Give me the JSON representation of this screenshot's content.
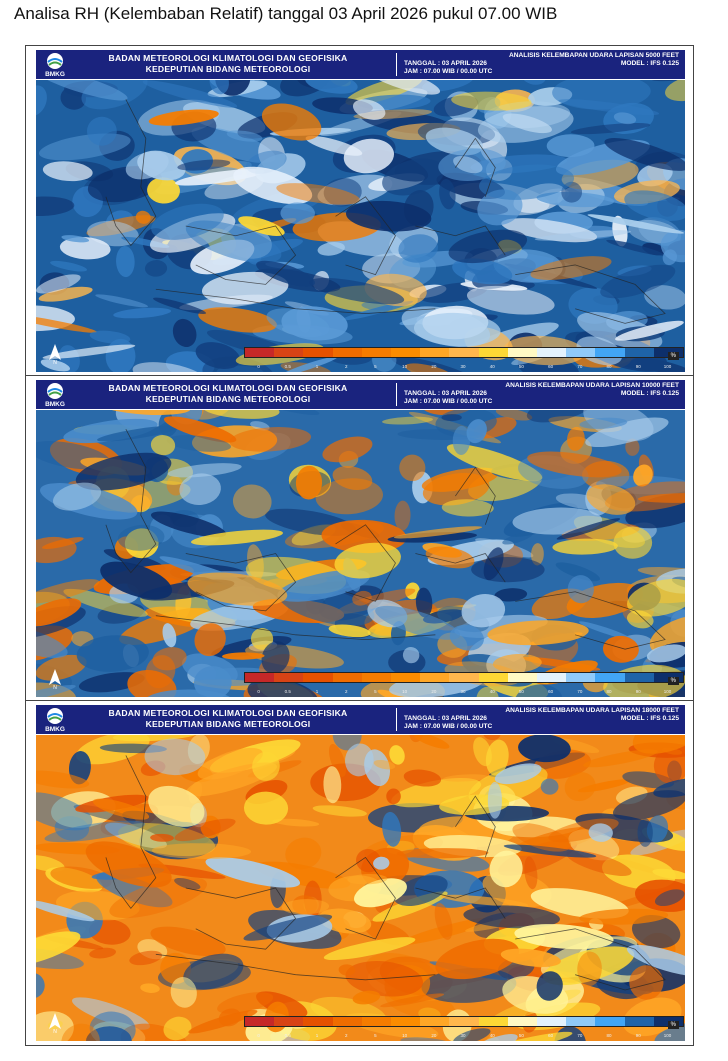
{
  "caption": "Analisa RH (Kelembaban Relatif) tanggal 03 April 2026 pukul 07.00 WIB",
  "panels": [
    {
      "org_line1": "BADAN METEOROLOGI KLIMATOLOGI DAN GEOFISIKA",
      "org_line2": "KEDEPUTIAN BIDANG METEOROLOGI",
      "logo_text": "BMKG",
      "analysis_title": "ANALISIS KELEMBAPAN UDARA LAPISAN 5000 FEET",
      "date_label": "TANGGAL : 03 APRIL 2026",
      "time_label": "JAM : 07.00 WIB / 00.00 UTC",
      "model_label": "MODEL : IFS 0.125",
      "north_label": "N",
      "dominant": "moist"
    },
    {
      "org_line1": "BADAN METEOROLOGI KLIMATOLOGI DAN GEOFISIKA",
      "org_line2": "KEDEPUTIAN BIDANG METEOROLOGI",
      "logo_text": "BMKG",
      "analysis_title": "ANALISIS KELEMBAPAN UDARA LAPISAN 10000 FEET",
      "date_label": "TANGGAL : 03 APRIL 2026",
      "time_label": "JAM : 07.00 WIB / 00.00 UTC",
      "model_label": "MODEL : IFS 0.125",
      "north_label": "N",
      "dominant": "mixed"
    },
    {
      "org_line1": "BADAN METEOROLOGI KLIMATOLOGI DAN GEOFISIKA",
      "org_line2": "KEDEPUTIAN BIDANG METEOROLOGI",
      "logo_text": "BMKG",
      "analysis_title": "ANALISIS KELEMBAPAN UDARA LAPISAN 18000 FEET",
      "date_label": "TANGGAL : 03 APRIL 2026",
      "time_label": "JAM : 07.00 WIB / 00.00 UTC",
      "model_label": "MODEL : IFS 0.125",
      "north_label": "N",
      "dominant": "dry"
    }
  ],
  "colorbar": {
    "labels": [
      "0",
      "0.5",
      "1",
      "2",
      "5",
      "10",
      "20",
      "30",
      "40",
      "50",
      "60",
      "70",
      "80",
      "90",
      "100"
    ],
    "colors": [
      "#c62828",
      "#d84315",
      "#e65100",
      "#ef6c00",
      "#f57c00",
      "#fb8c00",
      "#ffa726",
      "#ffb74d",
      "#fdd835",
      "#fff9c4",
      "#e3f2fd",
      "#90caf9",
      "#42a5f5",
      "#1e63a8",
      "#0d2f6b"
    ],
    "unit": "%"
  },
  "colors": {
    "header_bg": "#1a237e",
    "moist": "#1e5fa0",
    "dry": "#ef8f1f"
  }
}
